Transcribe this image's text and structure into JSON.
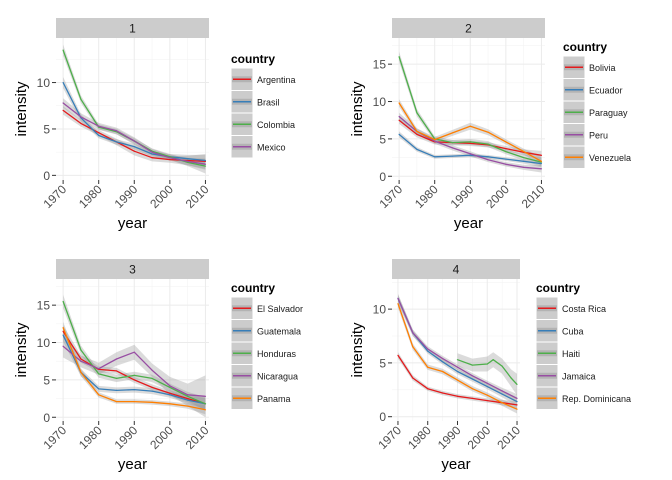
{
  "chart_data": [
    {
      "type": "line",
      "panel": "1",
      "xlabel": "year",
      "ylabel": "intensity",
      "xlim": [
        1968,
        2011
      ],
      "ylim": [
        -0.5,
        14.8
      ],
      "xticks": [
        1970,
        1980,
        1990,
        2000,
        2010
      ],
      "xtick_labels": [
        "1970",
        "1980",
        "1990",
        "2000",
        "2010"
      ],
      "yticks": [
        0,
        5,
        10
      ],
      "ytick_labels": [
        "0",
        "5",
        "10"
      ],
      "legend": {
        "title": "country",
        "placement": "right"
      },
      "x": [
        1970,
        1975,
        1980,
        1985,
        1990,
        1995,
        2000,
        2005,
        2010
      ],
      "series": [
        {
          "name": "Argentina",
          "color": "#E41A1C",
          "values": [
            7.0,
            5.6,
            4.6,
            3.6,
            2.6,
            1.9,
            1.7,
            1.6,
            1.5
          ],
          "band": [
            0.45,
            0.35,
            0.3,
            0.35,
            0.45,
            0.4,
            0.35,
            0.5,
            0.8
          ]
        },
        {
          "name": "Brasil",
          "color": "#377EB8",
          "values": [
            10.0,
            6.2,
            4.3,
            3.6,
            3.1,
            2.3,
            2.0,
            1.8,
            1.6
          ],
          "band": [
            0.6,
            0.4,
            0.3,
            0.3,
            0.3,
            0.3,
            0.3,
            0.4,
            0.6
          ]
        },
        {
          "name": "Colombia",
          "color": "#4DAF4A",
          "values": [
            13.5,
            8.2,
            5.2,
            4.7,
            3.7,
            2.6,
            2.0,
            1.4,
            1.0
          ],
          "band": [
            0.6,
            0.4,
            0.3,
            0.3,
            0.3,
            0.3,
            0.3,
            0.4,
            0.8
          ]
        },
        {
          "name": "Mexico",
          "color": "#984EA3",
          "values": [
            7.8,
            6.3,
            5.3,
            4.8,
            3.7,
            2.5,
            1.9,
            1.5,
            1.2
          ],
          "band": [
            0.5,
            0.4,
            0.35,
            0.35,
            0.4,
            0.35,
            0.3,
            0.4,
            0.6
          ]
        }
      ]
    },
    {
      "type": "line",
      "panel": "2",
      "xlabel": "year",
      "ylabel": "intensity",
      "xlim": [
        1968,
        2011
      ],
      "ylim": [
        -0.5,
        18.5
      ],
      "xticks": [
        1970,
        1980,
        1990,
        2000,
        2010
      ],
      "xtick_labels": [
        "1970",
        "1980",
        "1990",
        "2000",
        "2010"
      ],
      "yticks": [
        0,
        5,
        10,
        15
      ],
      "ytick_labels": [
        "0",
        "5",
        "10",
        "15"
      ],
      "legend": {
        "title": "country",
        "placement": "right"
      },
      "x": [
        1970,
        1975,
        1980,
        1985,
        1990,
        1995,
        2000,
        2005,
        2010
      ],
      "series": [
        {
          "name": "Bolivia",
          "color": "#E41A1C",
          "values": [
            7.5,
            5.6,
            4.6,
            4.5,
            4.4,
            4.2,
            3.7,
            3.2,
            2.8
          ],
          "band": [
            0.5,
            0.4,
            0.35,
            0.35,
            0.35,
            0.35,
            0.35,
            0.4,
            0.6
          ]
        },
        {
          "name": "Ecuador",
          "color": "#377EB8",
          "values": [
            5.6,
            3.6,
            2.6,
            2.7,
            2.8,
            2.6,
            2.3,
            2.0,
            1.7
          ],
          "band": [
            0.4,
            0.3,
            0.25,
            0.25,
            0.25,
            0.25,
            0.25,
            0.3,
            0.5
          ]
        },
        {
          "name": "Paraguay",
          "color": "#4DAF4A",
          "values": [
            16.0,
            8.5,
            5.0,
            4.5,
            4.6,
            4.3,
            3.3,
            2.5,
            1.9
          ],
          "band": [
            0.7,
            0.5,
            0.35,
            0.35,
            0.4,
            0.4,
            0.35,
            0.4,
            0.6
          ]
        },
        {
          "name": "Peru",
          "color": "#984EA3",
          "values": [
            8.0,
            6.0,
            4.7,
            3.8,
            3.0,
            2.2,
            1.6,
            1.2,
            1.0
          ],
          "band": [
            0.5,
            0.4,
            0.35,
            0.35,
            0.35,
            0.3,
            0.3,
            0.35,
            0.5
          ]
        },
        {
          "name": "Venezuela",
          "color": "#FF7F00",
          "values": [
            9.8,
            6.0,
            4.9,
            5.8,
            6.7,
            5.9,
            4.6,
            3.3,
            2.0
          ],
          "band": [
            0.5,
            0.4,
            0.35,
            0.4,
            0.45,
            0.4,
            0.35,
            0.4,
            0.6
          ]
        }
      ]
    },
    {
      "type": "line",
      "panel": "3",
      "xlabel": "year",
      "ylabel": "intensity",
      "xlim": [
        1968,
        2011
      ],
      "ylim": [
        -0.5,
        18.5
      ],
      "xticks": [
        1970,
        1980,
        1990,
        2000,
        2010
      ],
      "xtick_labels": [
        "1970",
        "1980",
        "1990",
        "2000",
        "2010"
      ],
      "yticks": [
        0,
        5,
        10,
        15
      ],
      "ytick_labels": [
        "0",
        "5",
        "10",
        "15"
      ],
      "legend": {
        "title": "country",
        "placement": "right"
      },
      "x": [
        1970,
        1975,
        1980,
        1985,
        1990,
        1995,
        2000,
        2005,
        2010
      ],
      "series": [
        {
          "name": "El Salvador",
          "color": "#E41A1C",
          "values": [
            11.5,
            7.8,
            6.4,
            6.2,
            5.0,
            4.0,
            3.2,
            2.5,
            1.8
          ],
          "band": [
            0.8,
            0.5,
            0.4,
            0.4,
            0.4,
            0.4,
            0.4,
            0.5,
            0.8
          ]
        },
        {
          "name": "Guatemala",
          "color": "#377EB8",
          "values": [
            11.0,
            6.0,
            3.8,
            3.6,
            3.7,
            3.5,
            3.0,
            2.3,
            1.8
          ],
          "band": [
            0.9,
            0.5,
            0.4,
            0.4,
            0.4,
            0.4,
            0.4,
            0.5,
            0.8
          ]
        },
        {
          "name": "Honduras",
          "color": "#4DAF4A",
          "values": [
            15.5,
            9.0,
            5.8,
            5.2,
            5.6,
            5.2,
            4.0,
            2.8,
            1.8
          ],
          "band": [
            0.9,
            0.6,
            0.5,
            0.5,
            0.5,
            0.5,
            0.5,
            0.6,
            0.9
          ]
        },
        {
          "name": "Nicaragua",
          "color": "#984EA3",
          "values": [
            9.5,
            7.5,
            6.5,
            7.8,
            8.7,
            6.3,
            4.2,
            3.0,
            2.8
          ],
          "band": [
            1.5,
            0.8,
            0.8,
            0.9,
            1.0,
            0.9,
            1.2,
            1.5,
            2.8
          ]
        },
        {
          "name": "Panama",
          "color": "#FF7F00",
          "values": [
            12.0,
            6.0,
            3.0,
            2.1,
            2.1,
            2.0,
            1.8,
            1.5,
            1.0
          ],
          "band": [
            0.8,
            0.5,
            0.35,
            0.3,
            0.3,
            0.3,
            0.3,
            0.35,
            0.6
          ]
        }
      ]
    },
    {
      "type": "line",
      "panel": "4",
      "xlabel": "year",
      "ylabel": "intensity",
      "xlim": [
        1968,
        2011
      ],
      "ylim": [
        -0.4,
        12.8
      ],
      "xticks": [
        1970,
        1980,
        1990,
        2000,
        2010
      ],
      "xtick_labels": [
        "1970",
        "1980",
        "1990",
        "2000",
        "2010"
      ],
      "yticks": [
        0,
        5,
        10
      ],
      "ytick_labels": [
        "0",
        "5",
        "10"
      ],
      "legend": {
        "title": "country",
        "placement": "right"
      },
      "x": [
        1970,
        1975,
        1980,
        1985,
        1990,
        1995,
        2000,
        2005,
        2010
      ],
      "series": [
        {
          "name": "Costa Rica",
          "color": "#E41A1C",
          "values": [
            5.7,
            3.6,
            2.6,
            2.2,
            1.9,
            1.7,
            1.5,
            1.3,
            1.1
          ],
          "band": [
            0.3,
            0.25,
            0.2,
            0.2,
            0.2,
            0.2,
            0.2,
            0.25,
            0.35
          ]
        },
        {
          "name": "Cuba",
          "color": "#377EB8",
          "values": [
            11.0,
            7.8,
            6.1,
            5.1,
            4.2,
            3.5,
            2.8,
            2.1,
            1.4
          ],
          "band": [
            0.4,
            0.3,
            0.25,
            0.25,
            0.25,
            0.25,
            0.25,
            0.3,
            0.4
          ]
        },
        {
          "name": "Haiti",
          "color": "#4DAF4A",
          "x": [
            1990,
            1995,
            2000,
            2002,
            2005,
            2008,
            2010
          ],
          "values": [
            5.3,
            4.8,
            4.9,
            5.3,
            4.7,
            3.6,
            3.0
          ],
          "band": [
            0.6,
            0.6,
            0.7,
            0.7,
            0.7,
            0.8,
            1.0
          ]
        },
        {
          "name": "Jamaica",
          "color": "#984EA3",
          "values": [
            11.0,
            7.8,
            6.3,
            5.4,
            4.6,
            3.8,
            3.1,
            2.4,
            1.7
          ],
          "band": [
            0.4,
            0.3,
            0.25,
            0.25,
            0.25,
            0.25,
            0.25,
            0.3,
            0.4
          ]
        },
        {
          "name": "Rep. Dominicana",
          "color": "#FF7F00",
          "values": [
            10.5,
            6.5,
            4.6,
            4.2,
            3.4,
            2.6,
            2.0,
            1.3,
            0.7
          ],
          "band": [
            0.4,
            0.3,
            0.25,
            0.25,
            0.25,
            0.25,
            0.25,
            0.3,
            0.4
          ]
        }
      ]
    }
  ]
}
